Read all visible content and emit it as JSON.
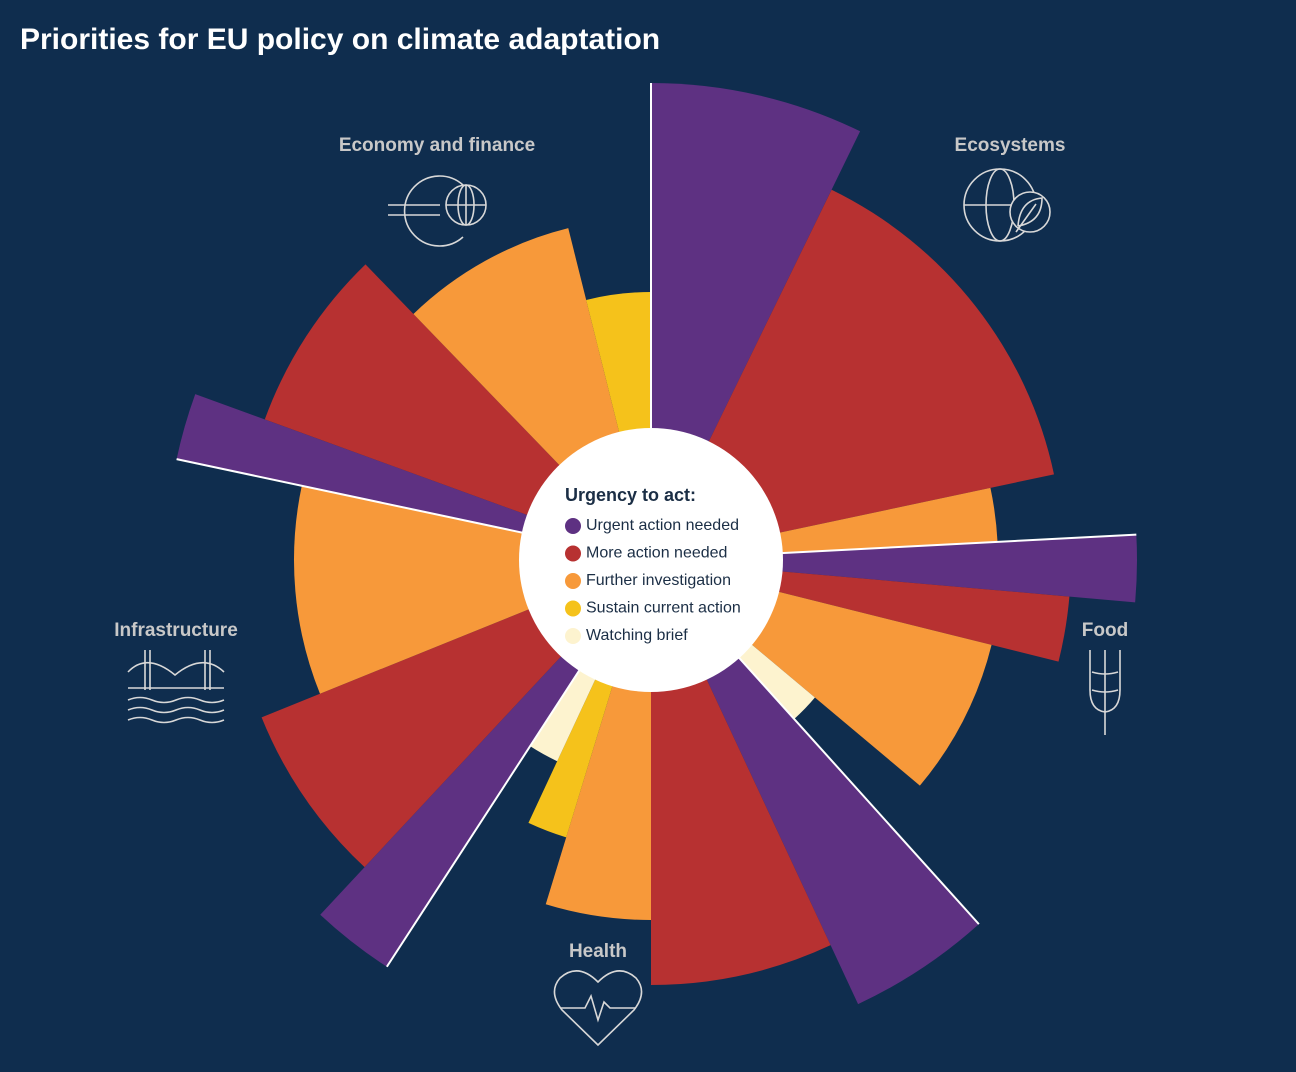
{
  "chart_data": {
    "type": "radial-bar",
    "title": "Priorities for EU policy on climate adaptation",
    "legend_title": "Urgency to act:",
    "levels": [
      {
        "name": "Urgent action needed",
        "color": "#5e3182"
      },
      {
        "name": "More action needed",
        "color": "#b73131"
      },
      {
        "name": "Further investigation",
        "color": "#f7993a"
      },
      {
        "name": "Sustain current action",
        "color": "#f5c21b"
      },
      {
        "name": "Watching brief",
        "color": "#fdf3cf"
      }
    ],
    "rlim": [
      0,
      500
    ],
    "sectors": [
      {
        "name": "Ecosystems",
        "wedges": [
          {
            "level": "Urgent action needed",
            "value": 477,
            "span": 26
          },
          {
            "level": "More action needed",
            "value": 412,
            "span": 52
          },
          {
            "level": "Further investigation",
            "value": 347,
            "span": 9
          }
        ]
      },
      {
        "name": "Food",
        "wedges": [
          {
            "level": "Urgent action needed",
            "value": 486,
            "span": 8
          },
          {
            "level": "More action needed",
            "value": 420,
            "span": 9
          },
          {
            "level": "Further investigation",
            "value": 351,
            "span": 26
          },
          {
            "level": "Watching brief",
            "value": 214,
            "span": 8
          }
        ]
      },
      {
        "name": "Health",
        "wedges": [
          {
            "level": "Urgent action needed",
            "value": 490,
            "span": 17
          },
          {
            "level": "More action needed",
            "value": 425,
            "span": 25
          },
          {
            "level": "Further investigation",
            "value": 360,
            "span": 17
          },
          {
            "level": "Sustain current action",
            "value": 290,
            "span": 8
          },
          {
            "level": "Watching brief",
            "value": 222,
            "span": 8
          }
        ]
      },
      {
        "name": "Infrastructure",
        "wedges": [
          {
            "level": "Urgent action needed",
            "value": 485,
            "span": 10
          },
          {
            "level": "More action needed",
            "value": 420,
            "span": 25
          },
          {
            "level": "Further investigation",
            "value": 357,
            "span": 34
          }
        ]
      },
      {
        "name": "Economy and finance",
        "wedges": [
          {
            "level": "Urgent action needed",
            "value": 485,
            "span": 8
          },
          {
            "level": "More action needed",
            "value": 411,
            "span": 26
          },
          {
            "level": "Further investigation",
            "value": 342,
            "span": 30
          },
          {
            "level": "Sustain current action",
            "value": 268,
            "span": 14
          }
        ]
      }
    ]
  }
}
